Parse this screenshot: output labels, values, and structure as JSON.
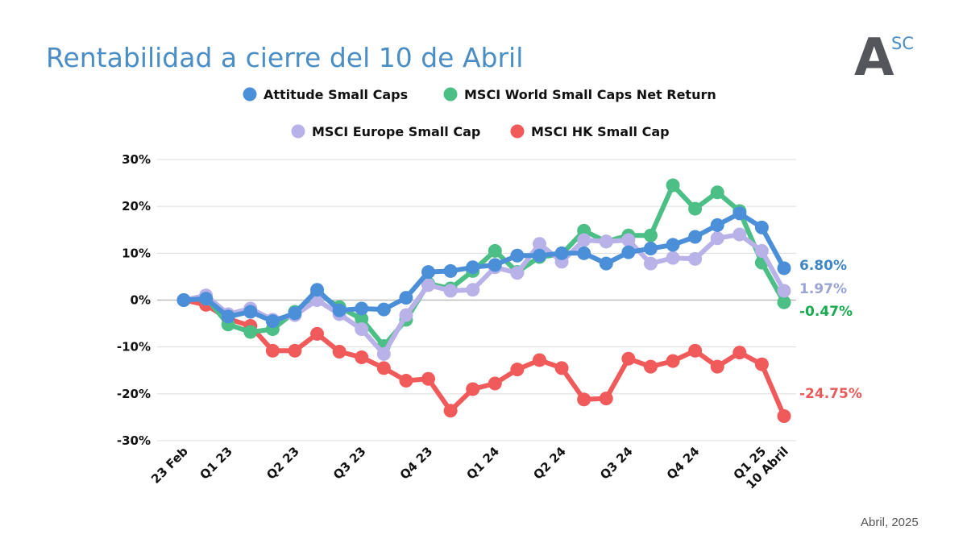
{
  "page": {
    "title": "Rentabilidad a cierre del 10 de Abril",
    "date_note": "Abril, 2025",
    "logo": {
      "letter": "A",
      "superscript": "SC"
    }
  },
  "chart_data": {
    "type": "line",
    "title": "Rentabilidad a cierre del 10 de Abril",
    "xlabel": "",
    "ylabel": "",
    "ylim": [
      -30,
      30
    ],
    "y_ticks": [
      30,
      20,
      10,
      0,
      -10,
      -20,
      -30
    ],
    "y_tick_labels": [
      "30%",
      "20%",
      "10%",
      "0%",
      "-10%",
      "-20%",
      "-30%"
    ],
    "grid": true,
    "legend_placement": "top",
    "x_tick_labels": [
      {
        "label": "23 Feb",
        "index": 0
      },
      {
        "label": "Q1 23",
        "index": 2
      },
      {
        "label": "Q2 23",
        "index": 5
      },
      {
        "label": "Q3 23",
        "index": 8
      },
      {
        "label": "Q4 23",
        "index": 11
      },
      {
        "label": "Q1 24",
        "index": 14
      },
      {
        "label": "Q2 24",
        "index": 17
      },
      {
        "label": "Q3 24",
        "index": 20
      },
      {
        "label": "Q4 24",
        "index": 23
      },
      {
        "label": "Q1 25",
        "index": 26
      },
      {
        "label": "10 Abril",
        "index": 27
      }
    ],
    "series": [
      {
        "name": "MSCI HK Small Cap",
        "color": "#f05a5a",
        "values": [
          0,
          -1,
          -4,
          -5.5,
          -10.8,
          -10.8,
          -7.2,
          -11,
          -12.2,
          -14.5,
          -17.2,
          -16.8,
          -23.6,
          -19,
          -17.8,
          -14.8,
          -12.8,
          -14.5,
          -21.2,
          -21,
          -12.5,
          -14.2,
          -13,
          -10.8,
          -14.2,
          -11.2,
          -13.7,
          -24.75
        ],
        "end_label": "-24.75%"
      },
      {
        "name": "MSCI World Small Caps Net Return",
        "color": "#4cbf86",
        "values": [
          0,
          0.5,
          -5.2,
          -6.8,
          -6.2,
          -2.5,
          1.5,
          -1.5,
          -4,
          -9.8,
          -4.2,
          3.5,
          2.5,
          6.2,
          10.5,
          6,
          9.2,
          9.8,
          14.8,
          12.5,
          13.8,
          13.8,
          24.5,
          19.5,
          23,
          19,
          8,
          -0.47
        ],
        "end_label": "-0.47%"
      },
      {
        "name": "MSCI Europe Small Cap",
        "color": "#b8b2e8",
        "values": [
          0,
          1,
          -3,
          -1.8,
          -4.2,
          -3.2,
          0,
          -3,
          -6.2,
          -11.5,
          -3.2,
          3.2,
          2,
          2.2,
          7,
          5.8,
          12,
          8.2,
          12.8,
          12.5,
          12.8,
          7.8,
          9,
          8.8,
          13.2,
          14,
          10.5,
          1.97
        ],
        "end_label": "1.97%"
      },
      {
        "name": "Attitude Small Caps",
        "color": "#4a8fd8",
        "values": [
          0,
          0.3,
          -3.5,
          -2.5,
          -4.5,
          -2.8,
          2.2,
          -2.2,
          -1.8,
          -2,
          0.5,
          6,
          6.2,
          7,
          7.5,
          9.5,
          9.5,
          10,
          10,
          7.8,
          10.2,
          11,
          11.8,
          13.5,
          16,
          18.5,
          15.5,
          6.8
        ],
        "end_label": "6.80%"
      }
    ],
    "legend": [
      {
        "name": "Attitude Small Caps",
        "color": "#4a8fd8"
      },
      {
        "name": "MSCI World Small Caps Net Return",
        "color": "#4cbf86"
      },
      {
        "name": "MSCI Europe Small Cap",
        "color": "#b8b2e8"
      },
      {
        "name": "MSCI HK Small Cap",
        "color": "#f05a5a"
      }
    ],
    "end_label_colors": {
      "Attitude Small Caps": "#3e86c6",
      "MSCI Europe Small Cap": "#9aa5d6",
      "MSCI World Small Caps Net Return": "#19a94f",
      "MSCI HK Small Cap": "#ea5a5a"
    }
  }
}
